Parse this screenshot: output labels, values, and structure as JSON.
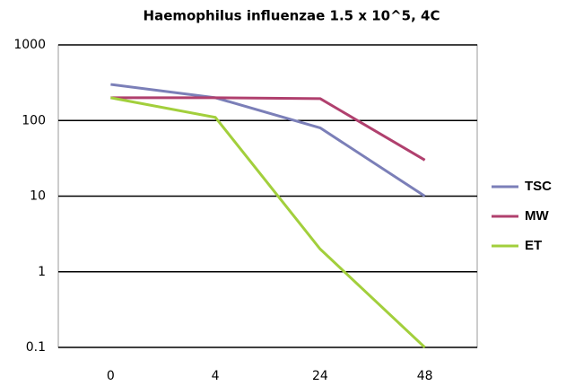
{
  "chart_data": {
    "type": "line",
    "title": "Haemophilus influenzae 1.5 x 10^5, 4C",
    "categories": [
      "0",
      "4",
      "24",
      "48"
    ],
    "series": [
      {
        "name": "TSC",
        "color": "#7b7fb8",
        "values": [
          300,
          200,
          80,
          10
        ]
      },
      {
        "name": "MW",
        "color": "#b0406e",
        "values": [
          200,
          200,
          195,
          30
        ]
      },
      {
        "name": "ET",
        "color": "#a2cf3c",
        "values": [
          200,
          110,
          2,
          0.1
        ]
      }
    ],
    "ylim": [
      0.1,
      1000
    ],
    "yticks": [
      0.1,
      1,
      10,
      100,
      1000
    ],
    "log_y": true,
    "grid": true,
    "legend": "right"
  }
}
